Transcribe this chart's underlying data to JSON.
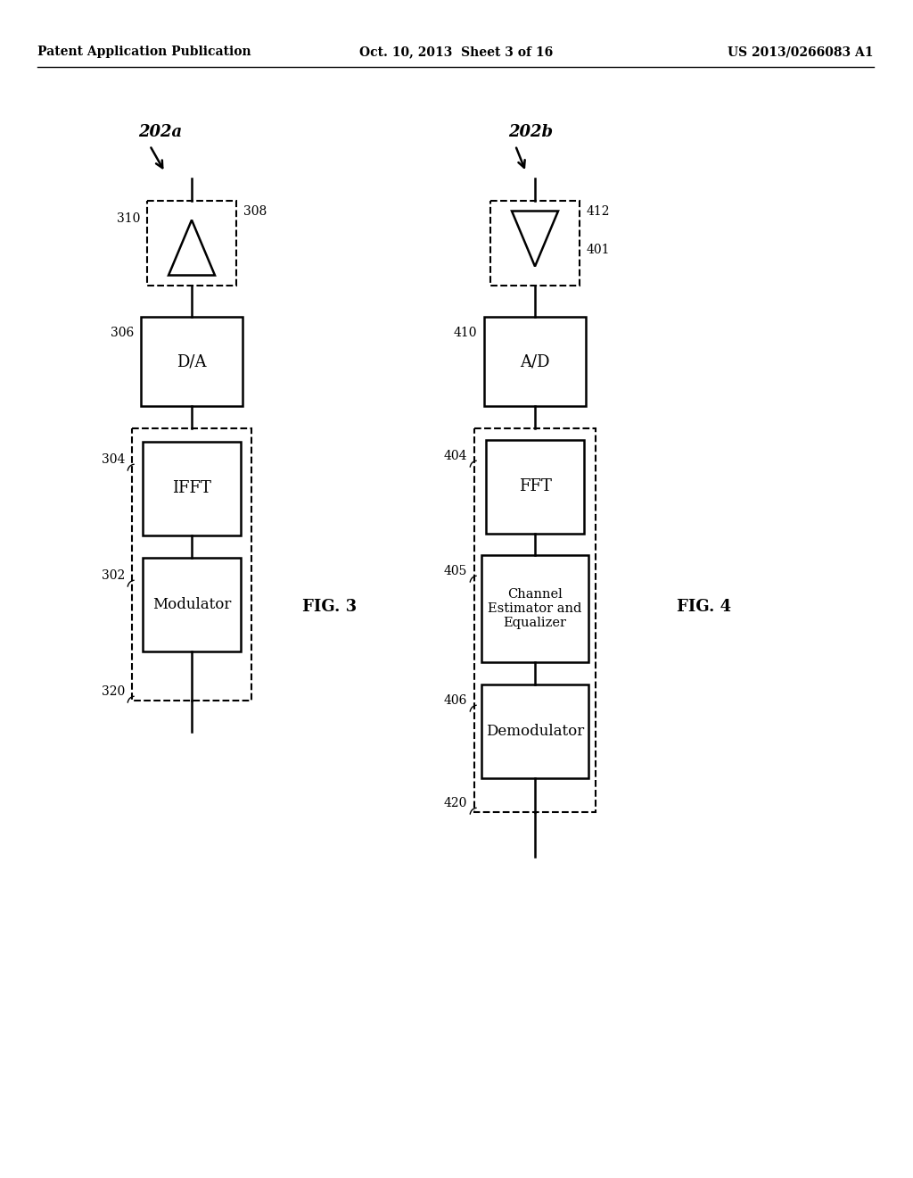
{
  "bg_color": "#ffffff",
  "header_left": "Patent Application Publication",
  "header_center": "Oct. 10, 2013  Sheet 3 of 16",
  "header_right": "US 2013/0266083 A1",
  "fig3_label": "FIG. 3",
  "fig4_label": "FIG. 4"
}
